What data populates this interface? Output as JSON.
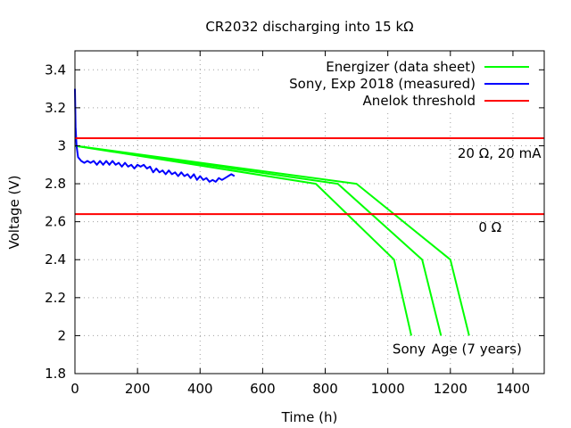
{
  "chart_data": {
    "type": "line",
    "title": "CR2032 discharging into 15 kΩ",
    "xlabel": "Time (h)",
    "ylabel": "Voltage (V)",
    "xlim": [
      0,
      1500
    ],
    "ylim": [
      1.8,
      3.5
    ],
    "xticks": [
      0,
      200,
      400,
      600,
      800,
      1000,
      1200,
      1400
    ],
    "yticks": [
      1.8,
      2,
      2.2,
      2.4,
      2.6,
      2.8,
      3,
      3.2,
      3.4
    ],
    "xtick_labels": [
      "0",
      "200",
      "400",
      "600",
      "800",
      "1000",
      "1200",
      "1400"
    ],
    "ytick_labels": [
      "1.8",
      "2",
      "2.2",
      "2.4",
      "2.6",
      "2.8",
      "3",
      "3.2",
      "3.4"
    ],
    "grid": true,
    "legend_position": "top-right",
    "series": [
      {
        "name": "Energizer (data sheet)",
        "color": "#00ff00",
        "legend": true,
        "x": [
          0,
          770,
          1020,
          1075
        ],
        "y": [
          3.0,
          2.8,
          2.4,
          2.0
        ]
      },
      {
        "color": "#00ff00",
        "legend": false,
        "x": [
          0,
          840,
          1110,
          1170
        ],
        "y": [
          3.0,
          2.8,
          2.4,
          2.0
        ]
      },
      {
        "color": "#00ff00",
        "legend": false,
        "x": [
          0,
          900,
          1200,
          1260
        ],
        "y": [
          3.0,
          2.8,
          2.4,
          2.0
        ]
      },
      {
        "name": "Sony, Exp 2018 (measured)",
        "color": "#0000ff",
        "legend": true,
        "x": [
          0,
          2,
          5,
          10,
          20,
          30,
          40,
          50,
          60,
          70,
          80,
          90,
          100,
          110,
          120,
          130,
          140,
          150,
          160,
          170,
          180,
          190,
          200,
          210,
          220,
          230,
          240,
          250,
          260,
          270,
          280,
          290,
          300,
          310,
          320,
          330,
          340,
          350,
          360,
          370,
          380,
          390,
          400,
          410,
          420,
          430,
          440,
          450,
          460,
          470,
          480,
          490,
          500,
          510
        ],
        "y": [
          3.3,
          3.1,
          3.0,
          2.94,
          2.92,
          2.91,
          2.92,
          2.91,
          2.92,
          2.9,
          2.92,
          2.9,
          2.92,
          2.9,
          2.92,
          2.9,
          2.91,
          2.89,
          2.91,
          2.89,
          2.9,
          2.88,
          2.9,
          2.89,
          2.9,
          2.88,
          2.89,
          2.86,
          2.88,
          2.86,
          2.87,
          2.85,
          2.87,
          2.85,
          2.86,
          2.84,
          2.86,
          2.84,
          2.85,
          2.83,
          2.85,
          2.82,
          2.84,
          2.82,
          2.83,
          2.81,
          2.82,
          2.81,
          2.83,
          2.82,
          2.83,
          2.84,
          2.85,
          2.84
        ]
      },
      {
        "name": "Anelok threshold",
        "color": "#ff0000",
        "legend": true,
        "x": [
          0,
          1500
        ],
        "y": [
          3.04,
          3.04
        ]
      },
      {
        "color": "#ff0000",
        "legend": false,
        "x": [
          0,
          1500
        ],
        "y": [
          2.64,
          2.64
        ]
      }
    ],
    "annotations": [
      {
        "text": "20 Ω, 20 mA",
        "x": 1490,
        "y": 2.96,
        "align": "right"
      },
      {
        "text": "0 Ω",
        "x": 1290,
        "y": 2.57,
        "align": "left"
      },
      {
        "text": "Sony",
        "x": 1015,
        "y": 1.93,
        "align": "left"
      },
      {
        "text": "Age (7 years)",
        "x": 1140,
        "y": 1.93,
        "align": "left"
      }
    ]
  }
}
